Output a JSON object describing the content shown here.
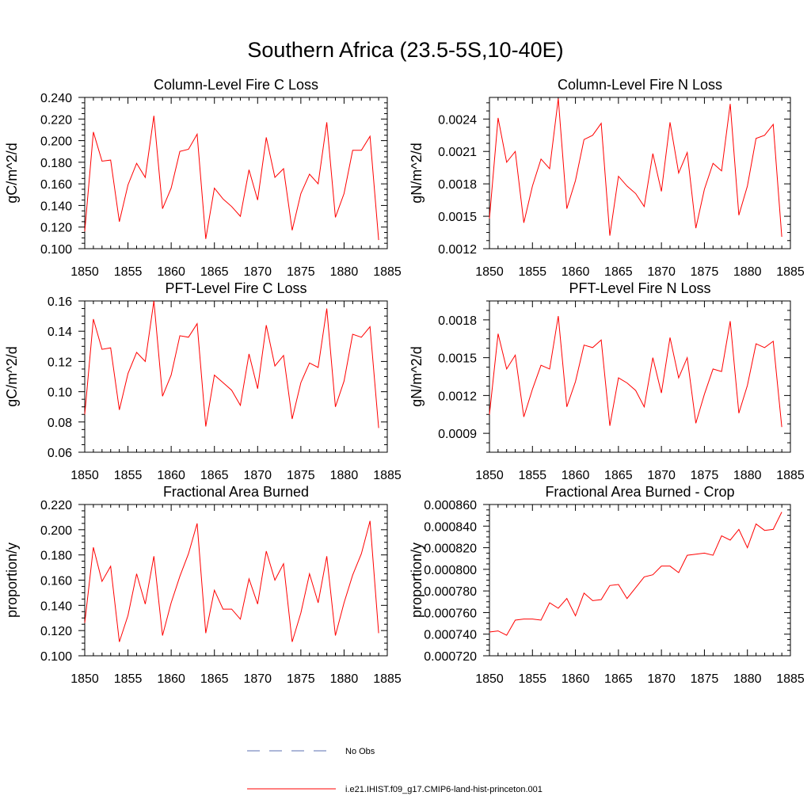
{
  "title": "Southern Africa (23.5-5S,10-40E)",
  "colors": {
    "model": "#ff0000",
    "obs": "#5b6fb0",
    "axis": "#000000"
  },
  "legend": {
    "entries": [
      {
        "label": "No Obs",
        "style": "dashed",
        "color": "#5b6fb0"
      },
      {
        "label": "i.e21.IHIST.f09_g17.CMIP6-land-hist-princeton.001",
        "style": "solid",
        "color": "#ff0000"
      }
    ]
  },
  "chart_data": [
    {
      "type": "line",
      "title": "Column-Level Fire C Loss",
      "ylabel": "gC/m^2/d",
      "xlim": [
        1850,
        1885
      ],
      "ylim": [
        0.1,
        0.24
      ],
      "xticks": [
        "1850",
        "1855",
        "1860",
        "1865",
        "1870",
        "1875",
        "1880",
        "1885"
      ],
      "yticks": [
        "0.100",
        "0.120",
        "0.140",
        "0.160",
        "0.180",
        "0.200",
        "0.220",
        "0.240"
      ],
      "x": [
        1850,
        1851,
        1852,
        1853,
        1854,
        1855,
        1856,
        1857,
        1858,
        1859,
        1860,
        1861,
        1862,
        1863,
        1864,
        1865,
        1866,
        1867,
        1868,
        1869,
        1870,
        1871,
        1872,
        1873,
        1874,
        1875,
        1876,
        1877,
        1878,
        1879,
        1880,
        1881,
        1882,
        1883,
        1884
      ],
      "series": [
        {
          "values": [
            0.116,
            0.208,
            0.181,
            0.182,
            0.125,
            0.159,
            0.179,
            0.166,
            0.223,
            0.137,
            0.156,
            0.19,
            0.192,
            0.206,
            0.109,
            0.156,
            0.146,
            0.139,
            0.13,
            0.173,
            0.145,
            0.203,
            0.166,
            0.174,
            0.117,
            0.151,
            0.169,
            0.16,
            0.217,
            0.129,
            0.151,
            0.191,
            0.191,
            0.204,
            0.108
          ]
        }
      ]
    },
    {
      "type": "line",
      "title": "Column-Level Fire N Loss",
      "ylabel": "gN/m^2/d",
      "xlim": [
        1850,
        1885
      ],
      "ylim": [
        0.0012,
        0.0026
      ],
      "xticks": [
        "1850",
        "1855",
        "1860",
        "1865",
        "1870",
        "1875",
        "1880",
        "1885"
      ],
      "yticks": [
        "0.0012",
        "0.0015",
        "0.0018",
        "0.0021",
        "0.0024"
      ],
      "x": [
        1850,
        1851,
        1852,
        1853,
        1854,
        1855,
        1856,
        1857,
        1858,
        1859,
        1860,
        1861,
        1862,
        1863,
        1864,
        1865,
        1866,
        1867,
        1868,
        1869,
        1870,
        1871,
        1872,
        1873,
        1874,
        1875,
        1876,
        1877,
        1878,
        1879,
        1880,
        1881,
        1882,
        1883,
        1884
      ],
      "series": [
        {
          "values": [
            0.00148,
            0.00241,
            0.002,
            0.0021,
            0.00144,
            0.00178,
            0.00203,
            0.00194,
            0.00259,
            0.00157,
            0.00183,
            0.00221,
            0.00225,
            0.00236,
            0.00132,
            0.00187,
            0.00178,
            0.00171,
            0.00159,
            0.00208,
            0.00173,
            0.00237,
            0.0019,
            0.00209,
            0.00139,
            0.00175,
            0.00199,
            0.00192,
            0.00254,
            0.00151,
            0.00178,
            0.00222,
            0.00225,
            0.00235,
            0.00131
          ]
        }
      ]
    },
    {
      "type": "line",
      "title": "PFT-Level Fire C Loss",
      "ylabel": "gC/m^2/d",
      "xlim": [
        1850,
        1885
      ],
      "ylim": [
        0.06,
        0.16
      ],
      "xticks": [
        "1850",
        "1855",
        "1860",
        "1865",
        "1870",
        "1875",
        "1880",
        "1885"
      ],
      "yticks": [
        "0.06",
        "0.08",
        "0.10",
        "0.12",
        "0.14",
        "0.16"
      ],
      "x": [
        1850,
        1851,
        1852,
        1853,
        1854,
        1855,
        1856,
        1857,
        1858,
        1859,
        1860,
        1861,
        1862,
        1863,
        1864,
        1865,
        1866,
        1867,
        1868,
        1869,
        1870,
        1871,
        1872,
        1873,
        1874,
        1875,
        1876,
        1877,
        1878,
        1879,
        1880,
        1881,
        1882,
        1883,
        1884
      ],
      "series": [
        {
          "values": [
            0.085,
            0.148,
            0.128,
            0.129,
            0.088,
            0.112,
            0.126,
            0.12,
            0.16,
            0.097,
            0.111,
            0.137,
            0.136,
            0.145,
            0.077,
            0.111,
            0.106,
            0.101,
            0.091,
            0.125,
            0.102,
            0.144,
            0.117,
            0.124,
            0.082,
            0.106,
            0.119,
            0.116,
            0.155,
            0.09,
            0.107,
            0.138,
            0.136,
            0.143,
            0.076
          ]
        }
      ]
    },
    {
      "type": "line",
      "title": "PFT-Level Fire N Loss",
      "ylabel": "gN/m^2/d",
      "xlim": [
        1850,
        1885
      ],
      "ylim": [
        0.00075,
        0.00195
      ],
      "xticks": [
        "1850",
        "1855",
        "1860",
        "1865",
        "1870",
        "1875",
        "1880",
        "1885"
      ],
      "yticks": [
        "0.0009",
        "0.0012",
        "0.0015",
        "0.0018"
      ],
      "x": [
        1850,
        1851,
        1852,
        1853,
        1854,
        1855,
        1856,
        1857,
        1858,
        1859,
        1860,
        1861,
        1862,
        1863,
        1864,
        1865,
        1866,
        1867,
        1868,
        1869,
        1870,
        1871,
        1872,
        1873,
        1874,
        1875,
        1876,
        1877,
        1878,
        1879,
        1880,
        1881,
        1882,
        1883,
        1884
      ],
      "series": [
        {
          "values": [
            0.00105,
            0.00169,
            0.00141,
            0.00152,
            0.00103,
            0.00125,
            0.00144,
            0.00141,
            0.00183,
            0.00111,
            0.00131,
            0.0016,
            0.00158,
            0.00164,
            0.00096,
            0.00134,
            0.0013,
            0.00124,
            0.00111,
            0.0015,
            0.00122,
            0.00166,
            0.00134,
            0.0015,
            0.00098,
            0.00121,
            0.00141,
            0.00139,
            0.00179,
            0.00106,
            0.00128,
            0.00161,
            0.00158,
            0.00163,
            0.00095
          ]
        }
      ]
    },
    {
      "type": "line",
      "title": "Fractional Area Burned",
      "ylabel": "proportion/y",
      "xlim": [
        1850,
        1885
      ],
      "ylim": [
        0.1,
        0.22
      ],
      "xticks": [
        "1850",
        "1855",
        "1860",
        "1865",
        "1870",
        "1875",
        "1880",
        "1885"
      ],
      "yticks": [
        "0.100",
        "0.120",
        "0.140",
        "0.160",
        "0.180",
        "0.200",
        "0.220"
      ],
      "x": [
        1850,
        1851,
        1852,
        1853,
        1854,
        1855,
        1856,
        1857,
        1858,
        1859,
        1860,
        1861,
        1862,
        1863,
        1864,
        1865,
        1866,
        1867,
        1868,
        1869,
        1870,
        1871,
        1872,
        1873,
        1874,
        1875,
        1876,
        1877,
        1878,
        1879,
        1880,
        1881,
        1882,
        1883,
        1884
      ],
      "series": [
        {
          "values": [
            0.126,
            0.186,
            0.159,
            0.171,
            0.111,
            0.132,
            0.165,
            0.141,
            0.179,
            0.116,
            0.142,
            0.163,
            0.181,
            0.205,
            0.118,
            0.152,
            0.137,
            0.137,
            0.129,
            0.161,
            0.141,
            0.183,
            0.16,
            0.173,
            0.111,
            0.134,
            0.165,
            0.142,
            0.179,
            0.116,
            0.142,
            0.164,
            0.181,
            0.207,
            0.118
          ]
        }
      ]
    },
    {
      "type": "line",
      "title": "Fractional Area Burned - Crop",
      "ylabel": "proportion/y",
      "xlim": [
        1850,
        1885
      ],
      "ylim": [
        0.00072,
        0.00086
      ],
      "xticks": [
        "1850",
        "1855",
        "1860",
        "1865",
        "1870",
        "1875",
        "1880",
        "1885"
      ],
      "yticks": [
        "0.000720",
        "0.000740",
        "0.000760",
        "0.000780",
        "0.000800",
        "0.000820",
        "0.000840",
        "0.000860"
      ],
      "x": [
        1850,
        1851,
        1852,
        1853,
        1854,
        1855,
        1856,
        1857,
        1858,
        1859,
        1860,
        1861,
        1862,
        1863,
        1864,
        1865,
        1866,
        1867,
        1868,
        1869,
        1870,
        1871,
        1872,
        1873,
        1874,
        1875,
        1876,
        1877,
        1878,
        1879,
        1880,
        1881,
        1882,
        1883,
        1884
      ],
      "series": [
        {
          "values": [
            0.000742,
            0.000743,
            0.000739,
            0.000753,
            0.000754,
            0.000754,
            0.000753,
            0.000769,
            0.000764,
            0.000773,
            0.000757,
            0.000778,
            0.000771,
            0.000772,
            0.000785,
            0.000786,
            0.000773,
            0.000783,
            0.000793,
            0.000795,
            0.000803,
            0.000803,
            0.000797,
            0.000813,
            0.000814,
            0.000815,
            0.000813,
            0.000831,
            0.000827,
            0.000837,
            0.00082,
            0.000842,
            0.000836,
            0.000837,
            0.000853
          ]
        }
      ]
    }
  ]
}
